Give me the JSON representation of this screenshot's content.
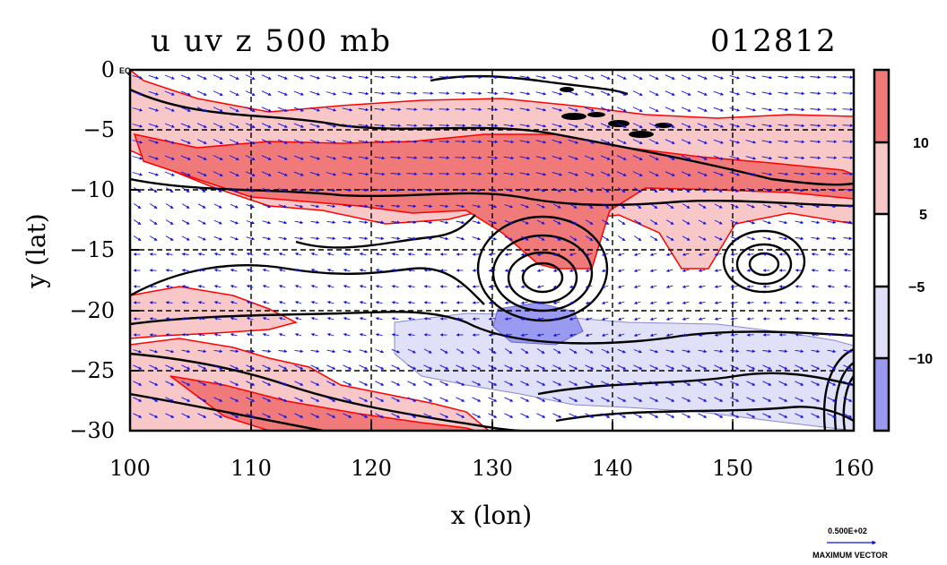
{
  "chart_data": {
    "type": "heatmap",
    "title_left": "u uv z 500 mb",
    "title_right": "012812",
    "xlabel": "x (lon)",
    "ylabel": "y (lat)",
    "xlim": [
      100,
      160
    ],
    "ylim": [
      -30,
      0
    ],
    "x_ticks": [
      "100",
      "110",
      "120",
      "130",
      "140",
      "150",
      "160"
    ],
    "y_ticks": [
      "0",
      "−5",
      "−10",
      "−15",
      "−20",
      "−25",
      "−30"
    ],
    "top_left_label": "EQ",
    "grid": true,
    "colorbar": {
      "ticks": [
        "10",
        "5",
        "−5",
        "−10"
      ],
      "colors": [
        "#f07a7a",
        "#f8c8c8",
        "#ffffff",
        "#e0e0f8",
        "#9a9af0"
      ]
    },
    "vector_reference": {
      "value": "0.500E+02",
      "label": "MAXIMUM VECTOR"
    },
    "colors": {
      "positive_strong": "#f07a7a",
      "positive_weak": "#f8c8c8",
      "negative_weak": "#e0e0f8",
      "negative_strong": "#9a9af0",
      "contour": "#000000",
      "shading_outline": "#ff0000",
      "vectors": "#1010e0"
    }
  }
}
